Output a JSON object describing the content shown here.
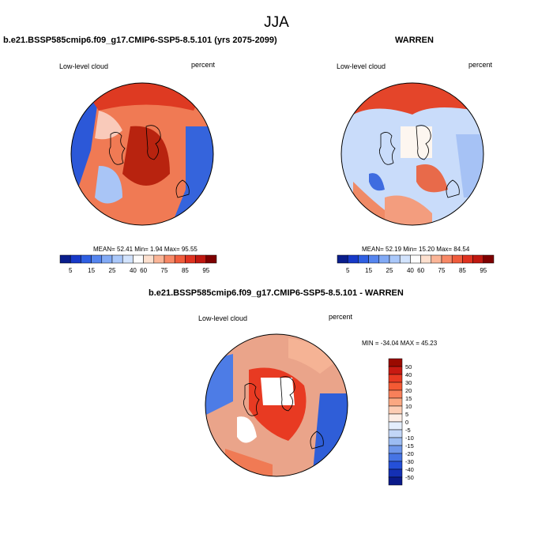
{
  "figure": {
    "title": "JJA"
  },
  "panels": [
    {
      "title": "b.e21.BSSP585cmip6.f09_g17.CMIP6-SSP5-8.5.101 (yrs 2075-2099)",
      "left_label": "Low-level cloud",
      "right_label": "percent",
      "stats": "MEAN=  52.41  Min=   1.94  Max=  95.55",
      "colorbar": {
        "labels": [
          "5",
          "15",
          "25",
          "40",
          "60",
          "75",
          "85",
          "95"
        ],
        "colors": [
          "#0a1e8c",
          "#1739c8",
          "#2f5fe2",
          "#5585ef",
          "#82aaf5",
          "#aac8fa",
          "#d2e3fd",
          "#fdfdfd",
          "#fde0cf",
          "#fbb597",
          "#f88866",
          "#f05c3c",
          "#df3220",
          "#c01810",
          "#7e0000"
        ]
      },
      "map_fill": "#f07a54"
    },
    {
      "title": "WARREN",
      "left_label": "Low-level cloud",
      "right_label": "percent",
      "stats": "MEAN=  52.19  Min=  15.20  Max=  84.54",
      "colorbar": {
        "labels": [
          "5",
          "15",
          "25",
          "40",
          "60",
          "75",
          "85",
          "95"
        ],
        "colors": [
          "#0a1e8c",
          "#1739c8",
          "#2f5fe2",
          "#5585ef",
          "#82aaf5",
          "#aac8fa",
          "#d2e3fd",
          "#fdfdfd",
          "#fde0cf",
          "#fbb597",
          "#f88866",
          "#f05c3c",
          "#df3220",
          "#c01810",
          "#7e0000"
        ]
      },
      "map_fill": "#c9dcfa"
    },
    {
      "title": "b.e21.BSSP585cmip6.f09_g17.CMIP6-SSP5-8.5.101 - WARREN",
      "left_label": "Low-level cloud",
      "right_label": "percent",
      "stats": "MIN = -34.04 MAX =  45.23",
      "colorbar": {
        "labels": [
          "50",
          "40",
          "30",
          "20",
          "15",
          "10",
          "5",
          "0",
          "-5",
          "-10",
          "-15",
          "-20",
          "-30",
          "-40",
          "-50"
        ],
        "colors": [
          "#9a0a00",
          "#c81a12",
          "#e83a22",
          "#f45a34",
          "#f8805a",
          "#fba882",
          "#fdcdb4",
          "#fdeee6",
          "#e4eefc",
          "#c2d6f7",
          "#9cbcf2",
          "#6f97ea",
          "#4674e4",
          "#2550d8",
          "#1430b4",
          "#0a1a8a"
        ]
      },
      "map_fill": "#eaa48a"
    }
  ]
}
